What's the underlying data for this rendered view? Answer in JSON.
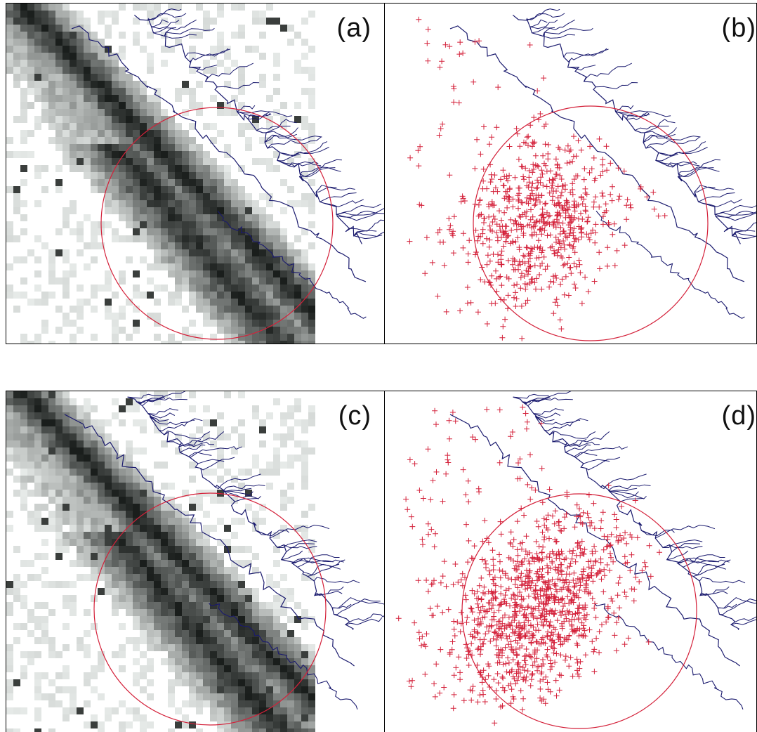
{
  "panels": [
    {
      "id": "a",
      "label": "(a)",
      "kind": "density-map"
    },
    {
      "id": "b",
      "label": "(b)",
      "kind": "point-map"
    },
    {
      "id": "c",
      "label": "(c)",
      "kind": "density-map"
    },
    {
      "id": "d",
      "label": "(d)",
      "kind": "point-map"
    }
  ],
  "colors": {
    "coastline": "#1a1a6e",
    "circle": "#d4213a",
    "points": "#d4213a",
    "density_dark": "#1f2b2a",
    "density_light": "#f4f4f4",
    "border": "#000000"
  }
}
